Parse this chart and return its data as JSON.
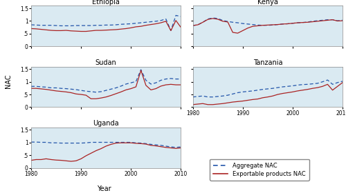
{
  "years": [
    1980,
    1981,
    1982,
    1983,
    1984,
    1985,
    1986,
    1987,
    1988,
    1989,
    1990,
    1991,
    1992,
    1993,
    1994,
    1995,
    1996,
    1997,
    1998,
    1999,
    2000,
    2001,
    2002,
    2003,
    2004,
    2005,
    2006,
    2007,
    2008,
    2009,
    2010
  ],
  "ethiopia": {
    "agg": [
      0.85,
      0.84,
      0.83,
      0.83,
      0.83,
      0.82,
      0.81,
      0.81,
      0.81,
      0.82,
      0.82,
      0.82,
      0.82,
      0.83,
      0.83,
      0.84,
      0.84,
      0.85,
      0.87,
      0.88,
      0.89,
      0.91,
      0.93,
      0.95,
      0.97,
      0.99,
      1.02,
      1.08,
      0.62,
      1.22,
      1.18
    ],
    "exp": [
      0.7,
      0.69,
      0.67,
      0.65,
      0.63,
      0.62,
      0.62,
      0.63,
      0.61,
      0.6,
      0.59,
      0.59,
      0.61,
      0.63,
      0.63,
      0.64,
      0.65,
      0.66,
      0.68,
      0.7,
      0.73,
      0.77,
      0.79,
      0.83,
      0.86,
      0.89,
      0.93,
      0.99,
      0.62,
      1.02,
      0.75
    ]
  },
  "kenya": {
    "agg": [
      0.82,
      0.85,
      0.95,
      1.08,
      1.12,
      1.1,
      1.02,
      0.98,
      0.95,
      0.93,
      0.9,
      0.88,
      0.86,
      0.84,
      0.83,
      0.83,
      0.84,
      0.86,
      0.88,
      0.89,
      0.91,
      0.93,
      0.94,
      0.96,
      0.99,
      1.01,
      1.03,
      1.05,
      1.05,
      1.01,
      1.03
    ],
    "exp": [
      0.82,
      0.85,
      0.95,
      1.06,
      1.1,
      1.07,
      0.99,
      0.96,
      0.55,
      0.52,
      0.62,
      0.72,
      0.79,
      0.81,
      0.83,
      0.84,
      0.85,
      0.86,
      0.88,
      0.89,
      0.91,
      0.93,
      0.94,
      0.95,
      0.97,
      0.99,
      1.01,
      1.03,
      1.05,
      1.0,
      1.01
    ]
  },
  "sudan": {
    "agg": [
      0.82,
      0.82,
      0.8,
      0.79,
      0.76,
      0.76,
      0.74,
      0.73,
      0.71,
      0.69,
      0.66,
      0.63,
      0.61,
      0.59,
      0.61,
      0.66,
      0.71,
      0.76,
      0.83,
      0.91,
      0.96,
      1.01,
      1.48,
      1.06,
      0.91,
      0.96,
      1.06,
      1.11,
      1.13,
      1.11,
      1.11
    ],
    "exp": [
      0.74,
      0.74,
      0.72,
      0.7,
      0.67,
      0.64,
      0.62,
      0.6,
      0.57,
      0.52,
      0.5,
      0.47,
      0.33,
      0.33,
      0.36,
      0.4,
      0.46,
      0.53,
      0.6,
      0.68,
      0.73,
      0.8,
      1.45,
      0.86,
      0.68,
      0.73,
      0.83,
      0.88,
      0.9,
      0.88,
      0.88
    ]
  },
  "tanzania": {
    "agg": [
      0.4,
      0.42,
      0.44,
      0.4,
      0.4,
      0.42,
      0.44,
      0.47,
      0.52,
      0.57,
      0.6,
      0.62,
      0.64,
      0.67,
      0.7,
      0.72,
      0.74,
      0.77,
      0.8,
      0.82,
      0.84,
      0.87,
      0.89,
      0.9,
      0.92,
      0.94,
      1.0,
      1.07,
      0.9,
      0.97,
      1.02
    ],
    "exp": [
      0.1,
      0.12,
      0.14,
      0.1,
      0.1,
      0.12,
      0.14,
      0.17,
      0.2,
      0.22,
      0.24,
      0.27,
      0.3,
      0.32,
      0.37,
      0.4,
      0.44,
      0.5,
      0.54,
      0.57,
      0.6,
      0.64,
      0.67,
      0.7,
      0.74,
      0.77,
      0.82,
      0.9,
      0.67,
      0.82,
      0.97
    ]
  },
  "uganda": {
    "agg": [
      1.02,
      1.02,
      1.01,
      1.01,
      0.99,
      0.99,
      0.98,
      0.98,
      0.98,
      0.98,
      0.98,
      0.99,
      1.01,
      1.01,
      1.01,
      1.01,
      1.01,
      1.01,
      1.01,
      1.01,
      1.01,
      0.99,
      0.98,
      0.96,
      0.93,
      0.91,
      0.89,
      0.86,
      0.83,
      0.81,
      0.83
    ],
    "exp": [
      0.3,
      0.33,
      0.33,
      0.36,
      0.33,
      0.31,
      0.3,
      0.28,
      0.26,
      0.28,
      0.36,
      0.48,
      0.58,
      0.68,
      0.76,
      0.86,
      0.93,
      0.98,
      0.99,
      0.99,
      0.99,
      0.97,
      0.96,
      0.94,
      0.89,
      0.87,
      0.84,
      0.81,
      0.79,
      0.77,
      0.79
    ]
  },
  "bg_color": "#daeaf2",
  "agg_color": "#2255aa",
  "exp_color": "#aa2222",
  "ylim": [
    0,
    1.6
  ],
  "ytick_vals": [
    0,
    0.5,
    1.0,
    1.5
  ],
  "ytick_labels": [
    "0",
    ".5",
    "1",
    "1.5"
  ],
  "xlim": [
    1980,
    2010
  ],
  "xticks": [
    1980,
    1990,
    2000,
    2010
  ]
}
